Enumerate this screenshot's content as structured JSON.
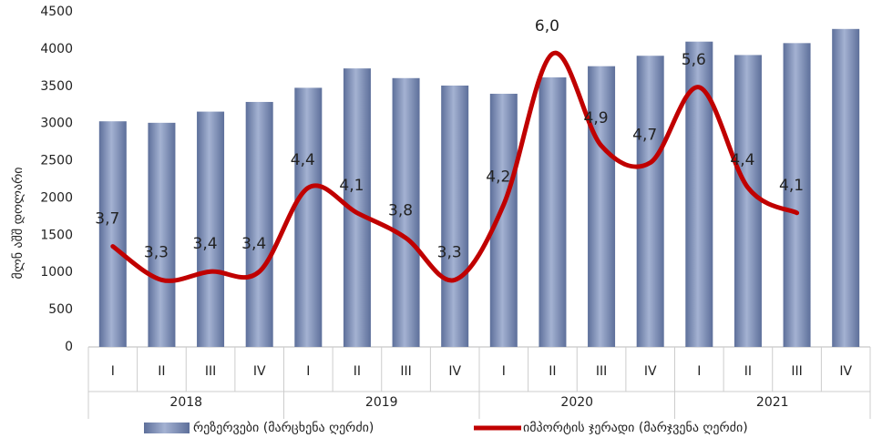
{
  "chart_data": {
    "type": "bar-line",
    "ylabel": "მლნ აშშ დოლარი",
    "categories": [
      "I",
      "II",
      "III",
      "IV",
      "I",
      "II",
      "III",
      "IV",
      "I",
      "II",
      "III",
      "IV",
      "I",
      "II",
      "III",
      "IV"
    ],
    "groups": [
      "2018",
      "2019",
      "2020",
      "2021"
    ],
    "series": [
      {
        "name": "რეზერვები (მარცხენა ღერძი)",
        "type": "bar",
        "color": "#7b8db5",
        "values": [
          3030,
          3010,
          3160,
          3290,
          3480,
          3740,
          3610,
          3510,
          3400,
          3620,
          3770,
          3910,
          4100,
          3920,
          4080,
          4270
        ]
      },
      {
        "name": "იმპორტის ჯერადი (მარჯვენა ღერძი)",
        "type": "line",
        "color": "#c00000",
        "axis": "y2",
        "values": [
          3.7,
          3.3,
          3.4,
          3.4,
          4.4,
          4.1,
          3.8,
          3.3,
          4.2,
          6.0,
          4.9,
          4.7,
          5.6,
          4.4,
          4.1,
          null
        ],
        "value_labels": [
          "3,7",
          "3,3",
          "3,4",
          "3,4",
          "4,4",
          "4,1",
          "3,8",
          "3,3",
          "4,2",
          "6,0",
          "4,9",
          "4,7",
          "5,6",
          "4,4",
          "4,1",
          null
        ]
      }
    ],
    "ylim": [
      0,
      4500
    ],
    "yticks": [
      0,
      500,
      1000,
      1500,
      2000,
      2500,
      3000,
      3500,
      4000,
      4500
    ],
    "y2lim": [
      2.5,
      6.5
    ],
    "legend": "bottom"
  }
}
